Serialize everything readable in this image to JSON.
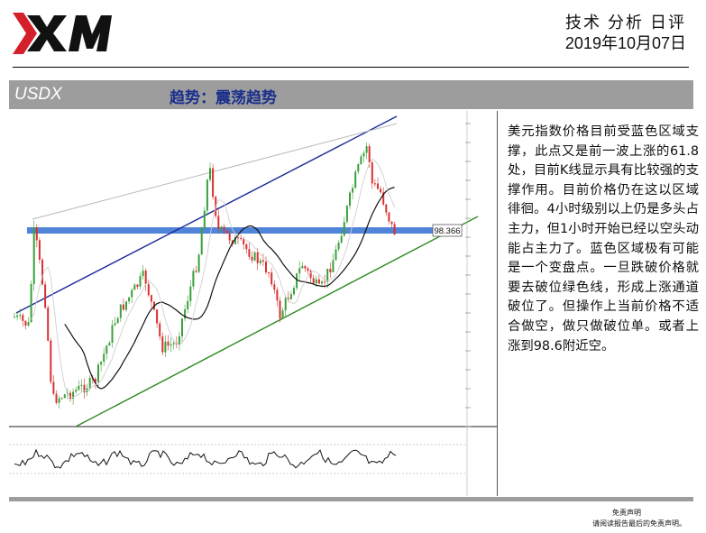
{
  "header": {
    "brand": "XM",
    "report_title": "技术 分析 日评",
    "date": "2019年10月07日"
  },
  "band": {
    "symbol": "USDX",
    "trend": "趋势：震荡趋势"
  },
  "chart": {
    "price_tag": "98.366",
    "colors": {
      "support_zone": "#4f84d8",
      "upper_channel": "#1d2a9a",
      "lower_channel": "#2e8a22",
      "upper_wedge": "#b8b8b8",
      "bull_candle": "#3aa03a",
      "bear_candle": "#d83030",
      "moving_average": "#111111"
    }
  },
  "commentary": "美元指数价格目前受蓝色区域支撑，此点又是前一波上涨的61.8处，目前K线显示具有比较强的支撑作用。目前价格仍在这以区域徘徊。4小时级别以上仍是多头占主力，但1小时开始已经以空头动能占主力了。蓝色区域极有可能是一个变盘点。一旦跌破价格就要去破位绿色线，形成上涨通道破位了。但操作上当前价格不适合做空，做只做破位单。或者上涨到98.6附近空。",
  "footer": {
    "disclaimer_title": "免责声明",
    "disclaimer_text": "请阅读报告最后的免责声明。"
  }
}
